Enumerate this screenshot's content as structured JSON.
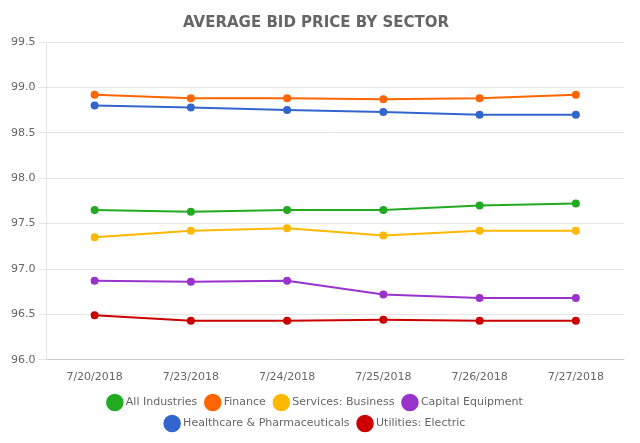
{
  "chart_data": {
    "type": "line",
    "title": "AVERAGE BID PRICE BY SECTOR",
    "categories": [
      "7/20/2018",
      "7/23/2018",
      "7/24/2018",
      "7/25/2018",
      "7/26/2018",
      "7/27/2018"
    ],
    "series": [
      {
        "name": "All Industries",
        "color": "#22AA22",
        "values": [
          97.65,
          97.63,
          97.65,
          97.65,
          97.7,
          97.72
        ]
      },
      {
        "name": "Finance",
        "color": "#FF6600",
        "values": [
          98.92,
          98.88,
          98.88,
          98.87,
          98.88,
          98.92
        ]
      },
      {
        "name": "Services: Business",
        "color": "#FFB800",
        "values": [
          97.35,
          97.42,
          97.45,
          97.37,
          97.42,
          97.42
        ]
      },
      {
        "name": "Capital Equipment",
        "color": "#9933CC",
        "values": [
          96.87,
          96.86,
          96.87,
          96.72,
          96.68,
          96.68
        ]
      },
      {
        "name": "Healthcare & Pharmaceuticals",
        "color": "#3366CC",
        "values": [
          98.8,
          98.78,
          98.75,
          98.73,
          98.7,
          98.7
        ]
      },
      {
        "name": "Utilities: Electric",
        "color": "#CC0000",
        "values": [
          96.49,
          96.43,
          96.43,
          96.44,
          96.43,
          96.43
        ]
      }
    ],
    "ylim": [
      96,
      99.5
    ],
    "yticks": [
      {
        "value": 96,
        "label": "96.0"
      },
      96.5,
      {
        "value": 97,
        "label": "97.0"
      },
      97.5,
      {
        "value": 98,
        "label": "98.0"
      },
      98.5,
      {
        "value": 99,
        "label": "99.0"
      },
      99.5
    ],
    "grid": "y",
    "legend": "bottom",
    "marker": "circle",
    "line_style": "solid"
  }
}
